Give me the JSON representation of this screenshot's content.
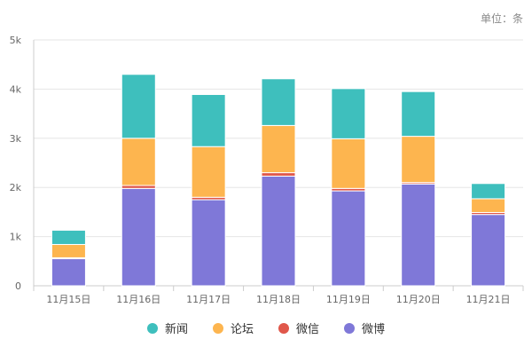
{
  "unit_label": "单位：条",
  "chart_data": {
    "type": "bar",
    "stacked": true,
    "title": "",
    "xlabel": "",
    "ylabel": "",
    "ylim": [
      0,
      5000
    ],
    "yticks": [
      {
        "value": 0,
        "label": "0"
      },
      {
        "value": 1000,
        "label": "1k"
      },
      {
        "value": 2000,
        "label": "2k"
      },
      {
        "value": 3000,
        "label": "3k"
      },
      {
        "value": 4000,
        "label": "4k"
      },
      {
        "value": 5000,
        "label": "5k"
      }
    ],
    "grid": true,
    "legend_position": "bottom",
    "categories": [
      "11月15日",
      "11月16日",
      "11月17日",
      "11月18日",
      "11月19日",
      "11月20日",
      "11月21日"
    ],
    "series": [
      {
        "name": "微博",
        "color": "#7f78d8",
        "values": [
          550,
          1980,
          1750,
          2230,
          1930,
          2070,
          1450
        ]
      },
      {
        "name": "微信",
        "color": "#e0574a",
        "values": [
          20,
          60,
          50,
          70,
          50,
          30,
          40
        ]
      },
      {
        "name": "论坛",
        "color": "#fdb54f",
        "values": [
          270,
          960,
          1030,
          960,
          1010,
          940,
          280
        ]
      },
      {
        "name": "新闻",
        "color": "#3ebfbd",
        "values": [
          290,
          1300,
          1060,
          950,
          1020,
          910,
          310
        ]
      }
    ]
  },
  "legend": [
    {
      "name": "新闻",
      "color": "#3ebfbd"
    },
    {
      "name": "论坛",
      "color": "#fdb54f"
    },
    {
      "name": "微信",
      "color": "#e0574a"
    },
    {
      "name": "微博",
      "color": "#7f78d8"
    }
  ]
}
